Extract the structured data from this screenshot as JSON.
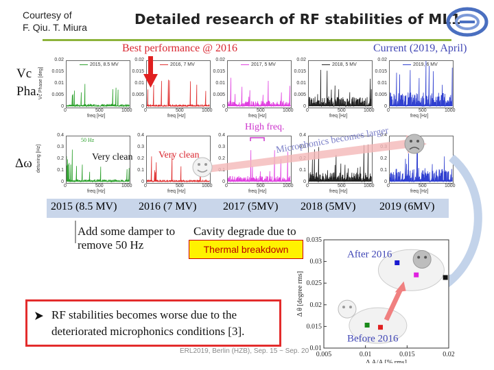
{
  "courtesy": [
    "Courtesy of",
    "F. Qiu. T. Miura"
  ],
  "title": "Detailed research of RF stabilities of ML1",
  "headers": {
    "best": "Best performance @ 2016",
    "current": "Current (2019, April)"
  },
  "row_labels": {
    "vc": "Vc",
    "pha": "Pha.",
    "dw": "Δω"
  },
  "top_panels": [
    {
      "legend": "2015, 8.5 MV",
      "color": "#2ca02c",
      "ylabel": "Vc Phase [deg]",
      "yticks": [
        "0.02",
        "0.015",
        "0.01",
        "0.005",
        "0"
      ],
      "xticks": [
        "0",
        "500",
        "1000"
      ],
      "xlabel": "freq [Hz]"
    },
    {
      "legend": "2016, 7 MV",
      "color": "#e03030",
      "ylabel": "",
      "yticks": [
        "0.02",
        "0.015",
        "0.01",
        "0.005",
        "0"
      ],
      "xticks": [
        "0",
        "500",
        "1000"
      ],
      "xlabel": "freq [Hz]"
    },
    {
      "legend": "2017, 5 MV",
      "color": "#e040e0",
      "ylabel": "",
      "yticks": [
        "0.02",
        "0.015",
        "0.01",
        "0.005",
        "0"
      ],
      "xticks": [
        "0",
        "500",
        "1000"
      ],
      "xlabel": "freq [Hz]"
    },
    {
      "legend": "2018, 5 MV",
      "color": "#222222",
      "ylabel": "",
      "yticks": [
        "0.02",
        "0.015",
        "0.01",
        "0.005",
        "0"
      ],
      "xticks": [
        "0",
        "500",
        "1000"
      ],
      "xlabel": "freq [Hz]"
    },
    {
      "legend": "2019, 6 MV",
      "color": "#3040d0",
      "ylabel": "",
      "yticks": [
        "0.02",
        "0.015",
        "0.01",
        "0.005",
        "0"
      ],
      "xticks": [
        "0",
        "500",
        "1000"
      ],
      "xlabel": "freq [Hz]"
    }
  ],
  "bottom_panels": [
    {
      "color": "#2ca02c",
      "ylabel": "detuning [Hz]",
      "yticks": [
        "0.4",
        "0.3",
        "0.2",
        "0.1",
        "0"
      ],
      "xticks": [
        "0",
        "500",
        "1000"
      ],
      "xlabel": "freq [Hz]"
    },
    {
      "color": "#e03030",
      "ylabel": "",
      "yticks": [
        "0.4",
        "0.3",
        "0.2",
        "0.1",
        "0"
      ],
      "xticks": [
        "0",
        "500",
        "1000"
      ],
      "xlabel": "freq [Hz]"
    },
    {
      "color": "#e040e0",
      "ylabel": "",
      "yticks": [
        "0.4",
        "0.3",
        "0.2",
        "0.1",
        "0"
      ],
      "xticks": [
        "0",
        "500",
        "1000"
      ],
      "xlabel": "freq [Hz]"
    },
    {
      "color": "#222222",
      "ylabel": "",
      "yticks": [
        "0.4",
        "0.3",
        "0.2",
        "0.1",
        "0"
      ],
      "xticks": [
        "0",
        "500",
        "1000"
      ],
      "xlabel": "freq [Hz]"
    },
    {
      "color": "#3040d0",
      "ylabel": "",
      "yticks": [
        "0.4",
        "0.3",
        "0.2",
        "0.1",
        "0"
      ],
      "xticks": [
        "0",
        "500",
        "1000"
      ],
      "xlabel": "freq [Hz]"
    }
  ],
  "annotations": {
    "fifty_hz": "50 Hz",
    "very_clean_1": "Very clean",
    "very_clean_2": "Very clean",
    "high_freq": "High freq.",
    "microphonics": "Microphonics becomes larger"
  },
  "years": [
    {
      "text": "2015 (8.5 MV)",
      "color": "#3f45b5"
    },
    {
      "text": "2016 (7 MV)",
      "color": "#d9262f"
    },
    {
      "text": "2017 (5MV)",
      "color": "#cc33cc"
    },
    {
      "text": "2018 (5MV)",
      "color": "#222222"
    },
    {
      "text": "2019 (6MV)",
      "color": "#3f45b5"
    }
  ],
  "damper_note": [
    "Add some damper to",
    "remove 50 Hz"
  ],
  "degrade_note": "Cavity degrade due to",
  "thermal": "Thermal breakdown",
  "notebox": [
    "RF stabilities becomes worse due to the",
    "deteriorated microphonics conditions [3]."
  ],
  "footer": "ERL2019, Berlin (HZB), Sep. 15 ~ Sep. 20",
  "chart_data": {
    "type": "scatter",
    "title": "",
    "xlabel": "Δ A/A [% rms]",
    "ylabel": "Δ θ [degree rms]",
    "xlim": [
      0.005,
      0.02
    ],
    "ylim": [
      0.01,
      0.035
    ],
    "xticks": [
      "0.005",
      "0.01",
      "0.015",
      "0.02"
    ],
    "yticks": [
      "0.035",
      "0.03",
      "0.025",
      "0.02",
      "0.015",
      "0.01"
    ],
    "points": [
      {
        "x": 0.0102,
        "y": 0.0153,
        "color": "#1a8a1a"
      },
      {
        "x": 0.0118,
        "y": 0.0148,
        "color": "#e02020"
      },
      {
        "x": 0.0138,
        "y": 0.0297,
        "color": "#1a1ad0"
      },
      {
        "x": 0.0161,
        "y": 0.0269,
        "color": "#e020e0"
      },
      {
        "x": 0.0196,
        "y": 0.0263,
        "color": "#111111"
      }
    ],
    "labels": {
      "after": "After 2016",
      "before": "Before 2016"
    }
  }
}
